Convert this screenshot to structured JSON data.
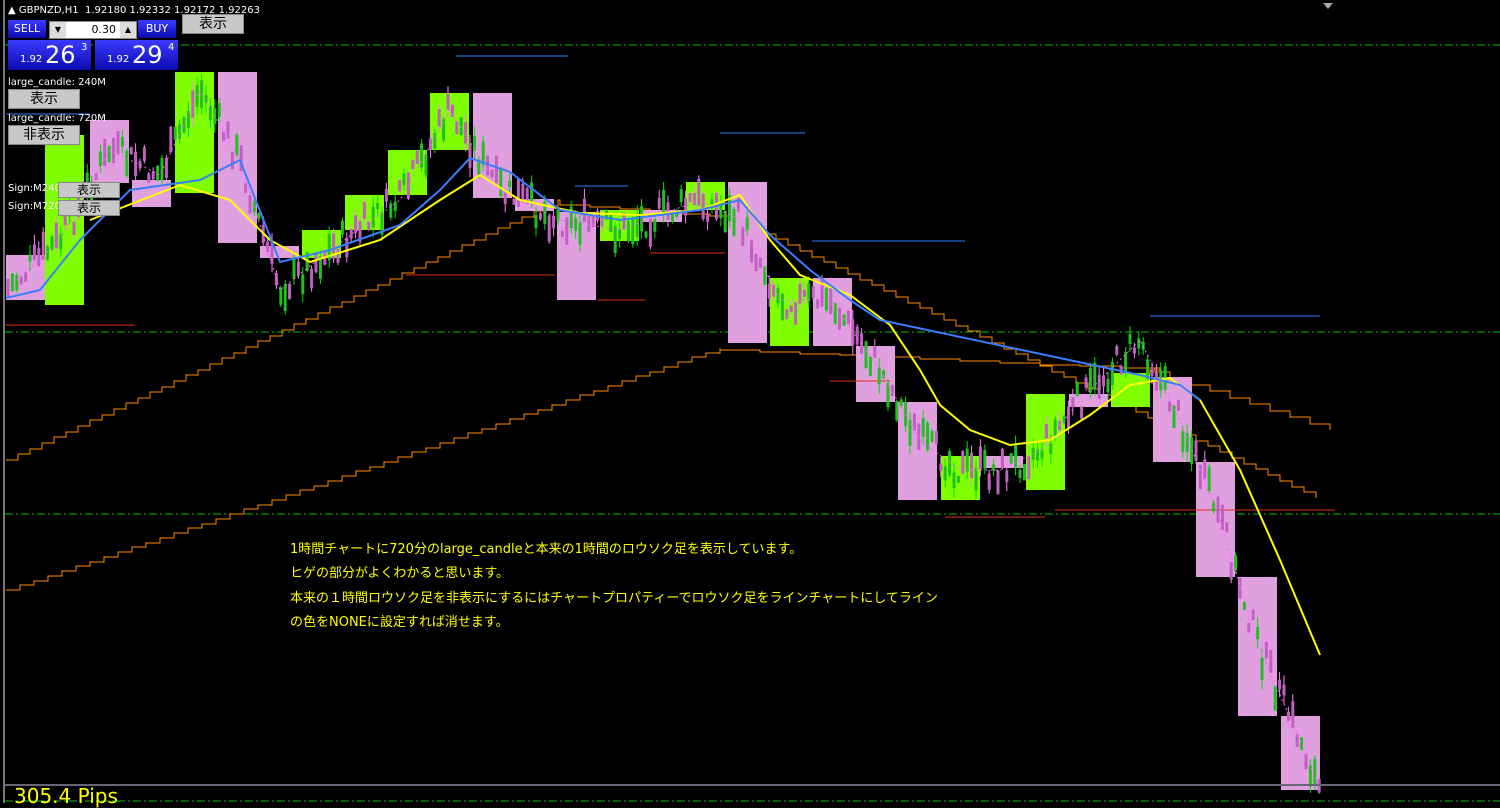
{
  "header": {
    "symbol": "GBPNZD,H1",
    "ohlc": "1.92180 1.92332 1.92172 1.92263"
  },
  "top_button": "表示",
  "trade_panel": {
    "sell_label": "SELL",
    "buy_label": "BUY",
    "lot": "0.30",
    "sell_price": {
      "prefix": "1.92",
      "big": "26",
      "sup": "3"
    },
    "buy_price": {
      "prefix": "1.92",
      "big": "29",
      "sup": "4"
    }
  },
  "controls": {
    "lc240_label": "large_candle: 240M",
    "lc240_button": "表示",
    "lc720_label": "large_candle: 720M",
    "lc720_button": "非表示",
    "sign240_label": "Sign:M240",
    "sign240_button": "表示",
    "sign720_label": "Sign:M720",
    "sign720_button": "表示"
  },
  "notes": [
    "1時間チャートに720分のlarge_candleと本来の1時間のロウソク足を表示しています。",
    "ヒゲの部分がよくわかると思います。",
    "本来の１時間ロウソク足を非表示にするにはチャートプロパティーでロウソク足をラインチャートにしてライン",
    "の色をNONEに設定すれば消せます。"
  ],
  "pips": "305.4 Pips",
  "colors": {
    "bull": "#80ff00",
    "bear": "#e0a0e0",
    "ma_fast": "#ffff00",
    "ma_slow": "#3a7fff",
    "stair": "#ff8c00",
    "grid_dash": "#00c000"
  }
}
